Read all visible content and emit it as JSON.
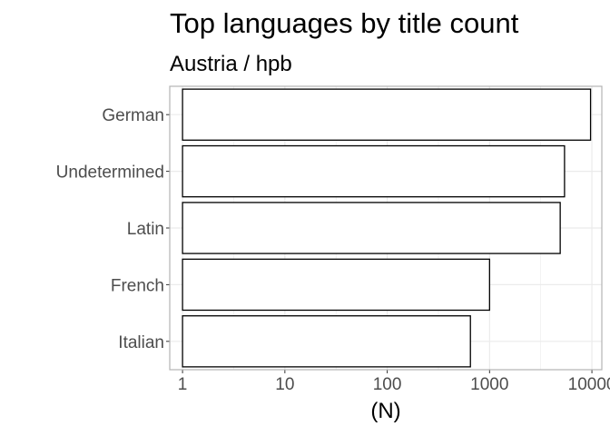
{
  "chart_data": {
    "type": "bar",
    "orientation": "horizontal",
    "title": "Top languages by title count",
    "subtitle": "Austria / hpb",
    "xlabel": "(N)",
    "ylabel": "",
    "x_scale": "log10",
    "xlim": [
      0.75,
      12500
    ],
    "x_ticks": [
      1,
      10,
      100,
      1000,
      10000
    ],
    "x_tick_labels": [
      "1",
      "10",
      "100",
      "1000",
      "10000"
    ],
    "grid": true,
    "legend": "none",
    "categories": [
      "German",
      "Undetermined",
      "Latin",
      "French",
      "Italian"
    ],
    "values": [
      9700,
      5400,
      4900,
      1000,
      650
    ],
    "colors": {
      "bar_fill": "#ffffff",
      "bar_stroke": "#000000",
      "grid": "#ebebeb",
      "panel_border": "#b3b3b3"
    }
  }
}
